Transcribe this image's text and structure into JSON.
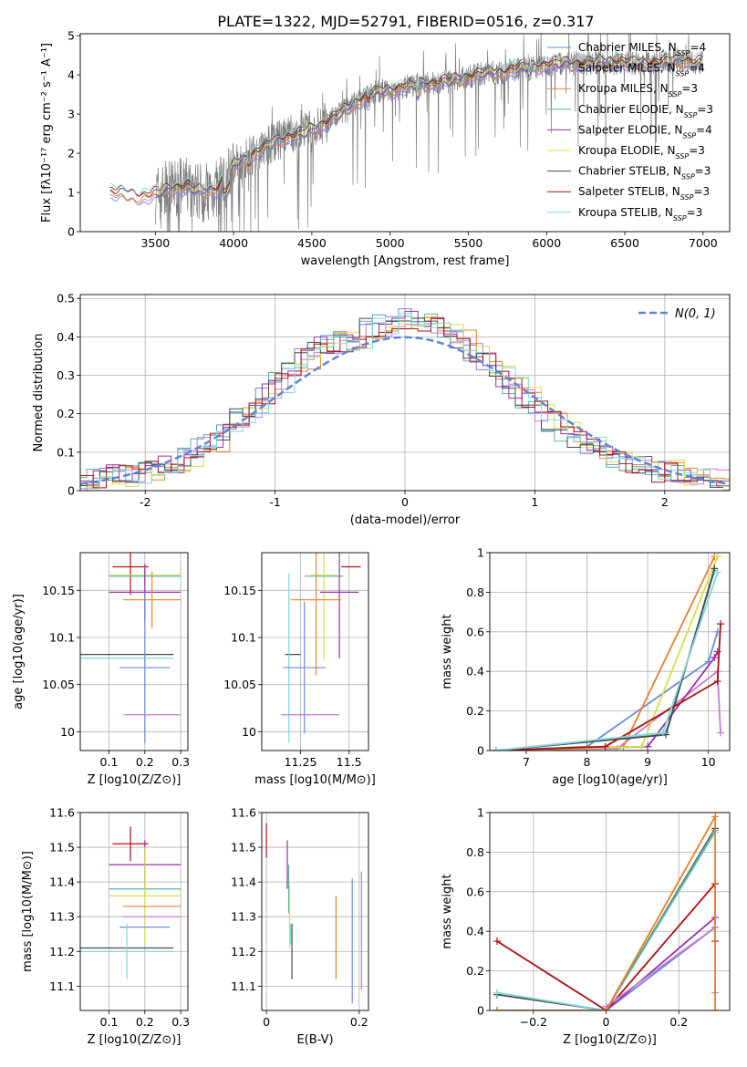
{
  "figure": {
    "title": "PLATE=1322, MJD=52791, FIBERID=0516, z=0.317"
  },
  "colors": {
    "Chabrier MILES": "#6b8cd6",
    "Salpeter MILES": "#c77bd6",
    "Kroupa MILES": "#e8822a",
    "Chabrier ELODIE": "#5ab3a0",
    "Salpeter ELODIE": "#9c2fa8",
    "Kroupa ELODIE": "#d4e04a",
    "Chabrier STELIB": "#4a4a4a",
    "Salpeter STELIB": "#b01010",
    "Kroupa STELIB": "#7fd8dc",
    "data": "#7f7f7f",
    "normal": "#5b85d8"
  },
  "chart_data": [
    {
      "type": "line",
      "xlabel": "wavelength [Angstrom, rest frame]",
      "ylabel": "Flux [fλ10⁻¹⁷ erg cm⁻² s⁻¹ A⁻¹]",
      "xlim": [
        3020,
        7170
      ],
      "ylim": [
        0,
        5.05
      ],
      "xticks": [
        3500,
        4000,
        4500,
        5000,
        5500,
        6000,
        6500,
        7000
      ],
      "yticks": [
        0,
        1,
        2,
        3,
        4,
        5
      ],
      "legend_position": "top-right",
      "legend": [
        "Chabrier MILES, N_SSP=4",
        "Salpeter MILES, N_SSP=4",
        "Kroupa MILES, N_SSP=3",
        "Chabrier ELODIE, N_SSP=3",
        "Salpeter ELODIE, N_SSP=4",
        "Kroupa ELODIE, N_SSP=3",
        "Chabrier STELIB, N_SSP=3",
        "Salpeter STELIB, N_SSP=3",
        "Kroupa STELIB, N_SSP=3"
      ],
      "model_continuum": {
        "x": [
          3220,
          3300,
          3400,
          3500,
          3600,
          3700,
          3800,
          3900,
          3950,
          4000,
          4100,
          4200,
          4300,
          4400,
          4500,
          4600,
          4700,
          4800,
          4900,
          5000,
          5100,
          5200,
          5300,
          5400,
          5500,
          5600,
          5700,
          5800,
          5900,
          6000,
          6100,
          6200,
          6300,
          6400,
          6500,
          6600,
          6700,
          6800,
          6900,
          7000
        ],
        "y": [
          1.0,
          0.95,
          0.9,
          0.95,
          1.1,
          1.15,
          1.0,
          1.1,
          1.35,
          1.7,
          1.9,
          2.15,
          2.35,
          2.45,
          2.6,
          2.8,
          3.05,
          3.35,
          3.55,
          3.6,
          3.7,
          3.75,
          3.8,
          3.85,
          3.95,
          4.05,
          4.05,
          4.15,
          4.2,
          4.25,
          4.3,
          4.28,
          4.3,
          4.35,
          4.3,
          4.3,
          4.3,
          4.35,
          4.35,
          4.3
        ]
      },
      "data_range": [
        3500,
        7000
      ]
    },
    {
      "type": "step",
      "xlabel": "(data-model)/error",
      "ylabel": "Normed distribution",
      "xlim": [
        -2.5,
        2.5
      ],
      "ylim": [
        0,
        0.51
      ],
      "xticks": [
        -2,
        -1,
        0,
        1,
        2
      ],
      "yticks": [
        0,
        0.1,
        0.2,
        0.3,
        0.4,
        0.5
      ],
      "grid": true,
      "legend": [
        "N(0, 1)"
      ],
      "legend_position": "top-right",
      "hist_base": {
        "edges_start": -2.5,
        "bin_width": 0.1,
        "values": [
          0.02,
          0.03,
          0.04,
          0.04,
          0.04,
          0.05,
          0.06,
          0.07,
          0.09,
          0.11,
          0.13,
          0.16,
          0.19,
          0.22,
          0.25,
          0.28,
          0.31,
          0.34,
          0.37,
          0.38,
          0.39,
          0.4,
          0.42,
          0.43,
          0.44,
          0.45,
          0.44,
          0.43,
          0.41,
          0.39,
          0.36,
          0.33,
          0.3,
          0.27,
          0.24,
          0.21,
          0.18,
          0.15,
          0.13,
          0.11,
          0.09,
          0.08,
          0.07,
          0.06,
          0.05,
          0.05,
          0.04,
          0.03,
          0.03,
          0.03
        ]
      }
    },
    {
      "type": "errorbar",
      "xlabel": "Z [log10(Z/Z⊙)]",
      "ylabel": "age  [log10(age/yr)]",
      "xlim": [
        0.02,
        0.32
      ],
      "ylim": [
        9.98,
        10.19
      ],
      "xticks": [
        0.1,
        0.2,
        0.3
      ],
      "yticks": [
        10.0,
        10.05,
        10.1,
        10.15
      ],
      "grid": true,
      "points": [
        {
          "m": "Salpeter STELIB",
          "x": 0.16,
          "y": 10.175,
          "xe": 0.05,
          "ye": 0.03
        },
        {
          "m": "Kroupa ELODIE",
          "x": 0.2,
          "y": 10.166,
          "xe": 0.1,
          "ye": 0.01
        },
        {
          "m": "Chabrier ELODIE",
          "x": 0.2,
          "y": 10.165,
          "xe": 0.1,
          "ye": 0.01
        },
        {
          "m": "Salpeter ELODIE",
          "x": 0.2,
          "y": 10.148,
          "xe": 0.1,
          "ye": 0.03
        },
        {
          "m": "Kroupa MILES",
          "x": 0.22,
          "y": 10.14,
          "xe": 0.08,
          "ye": 0.03
        },
        {
          "m": "Chabrier STELIB",
          "x": 0.15,
          "y": 10.082,
          "xe": 0.13,
          "ye": 0.0
        },
        {
          "m": "Kroupa STELIB",
          "x": 0.15,
          "y": 10.078,
          "xe": 0.13,
          "ye": 0.0
        },
        {
          "m": "Chabrier MILES",
          "x": 0.2,
          "y": 10.068,
          "xe": 0.07,
          "ye": 0.08
        },
        {
          "m": "Salpeter MILES",
          "x": 0.22,
          "y": 10.018,
          "xe": 0.08,
          "ye": 0.0
        }
      ]
    },
    {
      "type": "errorbar",
      "xlabel": "mass [log10(M/M⊙)]",
      "ylabel": "",
      "xlim": [
        11.05,
        11.6
      ],
      "ylim": [
        9.98,
        10.19
      ],
      "xticks": [
        11.25,
        11.5
      ],
      "yticks": [
        10.0,
        10.05,
        10.1,
        10.15
      ],
      "grid": true,
      "points": [
        {
          "m": "Salpeter STELIB",
          "x": 11.51,
          "y": 10.175,
          "xe": 0.05,
          "ye": 0.0
        },
        {
          "m": "Kroupa ELODIE",
          "x": 11.37,
          "y": 10.166,
          "xe": 0.07,
          "ye": 0.09
        },
        {
          "m": "Chabrier ELODIE",
          "x": 11.37,
          "y": 10.165,
          "xe": 0.1,
          "ye": 0.0
        },
        {
          "m": "Salpeter ELODIE",
          "x": 11.45,
          "y": 10.148,
          "xe": 0.1,
          "ye": 0.07
        },
        {
          "m": "Kroupa MILES",
          "x": 11.33,
          "y": 10.14,
          "xe": 0.13,
          "ye": 0.08
        },
        {
          "m": "Chabrier STELIB",
          "x": 11.21,
          "y": 10.082,
          "xe": 0.04,
          "ye": 0.0
        },
        {
          "m": "Kroupa STELIB",
          "x": 11.19,
          "y": 10.078,
          "xe": 0.0,
          "ye": 0.09
        },
        {
          "m": "Chabrier MILES",
          "x": 11.27,
          "y": 10.068,
          "xe": 0.11,
          "ye": 0.07
        },
        {
          "m": "Salpeter MILES",
          "x": 11.3,
          "y": 10.018,
          "xe": 0.15,
          "ye": 0.0
        }
      ]
    },
    {
      "type": "line",
      "xlabel": "age  [log10(age/yr)]",
      "ylabel": "mass weight",
      "xlim": [
        6.4,
        10.35
      ],
      "ylim": [
        0,
        1.0
      ],
      "xticks": [
        7,
        8,
        9,
        10
      ],
      "yticks": [
        0.0,
        0.2,
        0.4,
        0.6,
        0.8,
        1.0
      ],
      "grid": true,
      "series": [
        {
          "m": "Chabrier MILES",
          "x": [
            6.5,
            8.0,
            10.0,
            10.15
          ],
          "y": [
            0.0,
            0.02,
            0.45,
            0.6
          ]
        },
        {
          "m": "Salpeter MILES",
          "x": [
            6.5,
            8.5,
            10.15,
            10.2
          ],
          "y": [
            0.0,
            0.01,
            0.4,
            0.09
          ]
        },
        {
          "m": "Kroupa MILES",
          "x": [
            6.5,
            8.0,
            8.6,
            10.1
          ],
          "y": [
            0.0,
            0.01,
            0.02,
            0.98
          ]
        },
        {
          "m": "Chabrier ELODIE",
          "x": [
            6.5,
            9.3,
            10.1
          ],
          "y": [
            0.0,
            0.09,
            0.91
          ]
        },
        {
          "m": "Salpeter ELODIE",
          "x": [
            6.5,
            9.0,
            10.1,
            10.15
          ],
          "y": [
            0.0,
            0.02,
            0.47,
            0.5
          ]
        },
        {
          "m": "Kroupa ELODIE",
          "x": [
            6.5,
            8.9,
            10.15
          ],
          "y": [
            0.0,
            0.02,
            0.98
          ]
        },
        {
          "m": "Chabrier STELIB",
          "x": [
            6.5,
            9.3,
            10.1
          ],
          "y": [
            0.0,
            0.08,
            0.92
          ]
        },
        {
          "m": "Salpeter STELIB",
          "x": [
            6.5,
            8.3,
            10.15,
            10.2
          ],
          "y": [
            0.0,
            0.02,
            0.35,
            0.64
          ]
        },
        {
          "m": "Kroupa STELIB",
          "x": [
            6.5,
            9.25,
            10.15
          ],
          "y": [
            0.0,
            0.09,
            0.9
          ]
        }
      ]
    },
    {
      "type": "errorbar",
      "xlabel": "Z [log10(Z/Z⊙)]",
      "ylabel": "mass [log10(M/M⊙)]",
      "xlim": [
        0.02,
        0.32
      ],
      "ylim": [
        11.03,
        11.6
      ],
      "xticks": [
        0.1,
        0.2,
        0.3
      ],
      "yticks": [
        11.1,
        11.2,
        11.3,
        11.4,
        11.5,
        11.6
      ],
      "grid": true,
      "points": [
        {
          "m": "Salpeter STELIB",
          "x": 0.16,
          "y": 11.51,
          "xe": 0.05,
          "ye": 0.05
        },
        {
          "m": "Salpeter ELODIE",
          "x": 0.2,
          "y": 11.45,
          "xe": 0.1,
          "ye": 0.07
        },
        {
          "m": "Chabrier ELODIE",
          "x": 0.2,
          "y": 11.38,
          "xe": 0.1,
          "ye": 0.0
        },
        {
          "m": "Kroupa ELODIE",
          "x": 0.2,
          "y": 11.36,
          "xe": 0.1,
          "ye": 0.14
        },
        {
          "m": "Kroupa MILES",
          "x": 0.22,
          "y": 11.33,
          "xe": 0.08,
          "ye": 0.0
        },
        {
          "m": "Salpeter MILES",
          "x": 0.22,
          "y": 11.3,
          "xe": 0.08,
          "ye": 0.0
        },
        {
          "m": "Chabrier MILES",
          "x": 0.2,
          "y": 11.27,
          "xe": 0.07,
          "ye": 0.0
        },
        {
          "m": "Chabrier STELIB",
          "x": 0.15,
          "y": 11.21,
          "xe": 0.13,
          "ye": 0.0
        },
        {
          "m": "Kroupa STELIB",
          "x": 0.15,
          "y": 11.2,
          "xe": 0.13,
          "ye": 0.08
        }
      ]
    },
    {
      "type": "errorbar",
      "xlabel": "E(B-V)",
      "ylabel": "",
      "xlim": [
        -0.01,
        0.22
      ],
      "ylim": [
        11.03,
        11.6
      ],
      "xticks": [
        0.0,
        0.2
      ],
      "yticks": [
        11.1,
        11.2,
        11.3,
        11.4,
        11.5,
        11.6
      ],
      "grid": true,
      "points": [
        {
          "m": "Salpeter STELIB",
          "x": 0.0,
          "y": 11.52,
          "xe": 0.0,
          "ye": 0.05
        },
        {
          "m": "Salpeter ELODIE",
          "x": 0.045,
          "y": 11.45,
          "xe": 0.0,
          "ye": 0.07
        },
        {
          "m": "Chabrier ELODIE",
          "x": 0.048,
          "y": 11.38,
          "xe": 0.0,
          "ye": 0.07
        },
        {
          "m": "Kroupa ELODIE",
          "x": 0.05,
          "y": 11.3,
          "xe": 0.0,
          "ye": 0.09
        },
        {
          "m": "Kroupa STELIB",
          "x": 0.052,
          "y": 11.25,
          "xe": 0.0,
          "ye": 0.03
        },
        {
          "m": "Chabrier STELIB",
          "x": 0.055,
          "y": 11.2,
          "xe": 0.0,
          "ye": 0.08
        },
        {
          "m": "Kroupa MILES",
          "x": 0.15,
          "y": 11.24,
          "xe": 0.0,
          "ye": 0.12
        },
        {
          "m": "Chabrier MILES",
          "x": 0.185,
          "y": 11.23,
          "xe": 0.0,
          "ye": 0.18
        },
        {
          "m": "Salpeter MILES",
          "x": 0.205,
          "y": 11.26,
          "xe": 0.0,
          "ye": 0.17
        }
      ]
    },
    {
      "type": "line",
      "xlabel": "Z [log10(Z/Z⊙)]",
      "ylabel": "mass weight",
      "xlim": [
        -0.32,
        0.34
      ],
      "ylim": [
        0,
        1.0
      ],
      "xticks": [
        -0.2,
        0.0,
        0.2
      ],
      "yticks": [
        0.0,
        0.2,
        0.4,
        0.6,
        0.8,
        1.0
      ],
      "grid": true,
      "series": [
        {
          "m": "Salpeter STELIB",
          "x": [
            -0.3,
            0.0,
            0.3,
            0.3
          ],
          "y": [
            0.35,
            0.0,
            0.64,
            0.35
          ]
        },
        {
          "m": "Chabrier STELIB",
          "x": [
            -0.3,
            0.0,
            0.3
          ],
          "y": [
            0.08,
            0.0,
            0.92
          ]
        },
        {
          "m": "Kroupa STELIB",
          "x": [
            -0.3,
            0.0,
            0.3
          ],
          "y": [
            0.09,
            0.0,
            0.9
          ]
        },
        {
          "m": "Chabrier MILES",
          "x": [
            -0.3,
            0.0,
            0.3
          ],
          "y": [
            0.0,
            0.0,
            0.42
          ]
        },
        {
          "m": "Salpeter ELODIE",
          "x": [
            -0.3,
            0.0,
            0.3
          ],
          "y": [
            0.0,
            0.0,
            0.47
          ]
        },
        {
          "m": "Kroupa ELODIE",
          "x": [
            -0.3,
            0.0,
            0.3
          ],
          "y": [
            0.0,
            0.0,
            0.98
          ]
        },
        {
          "m": "Chabrier ELODIE",
          "x": [
            -0.3,
            0.0,
            0.3
          ],
          "y": [
            0.0,
            0.0,
            0.91
          ]
        },
        {
          "m": "Salpeter MILES",
          "x": [
            0.0,
            0.3,
            0.3
          ],
          "y": [
            0.02,
            0.42,
            0.09
          ]
        },
        {
          "m": "Kroupa MILES",
          "x": [
            -0.3,
            0.0,
            0.3,
            0.3
          ],
          "y": [
            0.0,
            0.0,
            0.98,
            0.0
          ]
        }
      ]
    }
  ]
}
